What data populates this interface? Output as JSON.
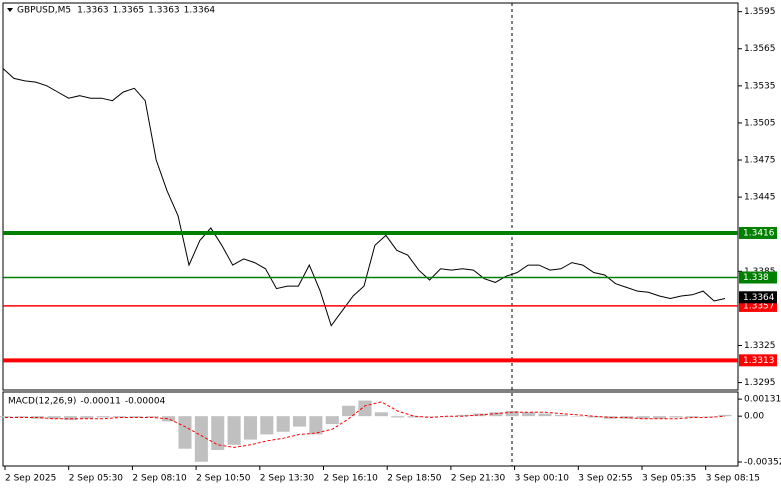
{
  "chart_data": [
    {
      "type": "line",
      "title": "GBPUSD,M5",
      "readout": [
        1.3363,
        1.3365,
        1.3363,
        1.3364
      ],
      "color": "#000000",
      "values": [
        1.3549,
        1.3541,
        1.3539,
        1.3538,
        1.3535,
        1.353,
        1.3525,
        1.3527,
        1.3525,
        1.3525,
        1.3523,
        1.353,
        1.3533,
        1.3523,
        1.3475,
        1.345,
        1.343,
        1.339,
        1.341,
        1.342,
        1.3406,
        1.339,
        1.3395,
        1.3392,
        1.3387,
        1.3371,
        1.3373,
        1.3373,
        1.339,
        1.3369,
        1.3341,
        1.3353,
        1.3365,
        1.3373,
        1.3406,
        1.3414,
        1.3402,
        1.3398,
        1.3386,
        1.3378,
        1.3387,
        1.3386,
        1.3387,
        1.3386,
        1.3379,
        1.3376,
        1.3381,
        1.3384,
        1.339,
        1.339,
        1.3386,
        1.3387,
        1.3392,
        1.339,
        1.3384,
        1.3382,
        1.3375,
        1.3372,
        1.3369,
        1.3368,
        1.3365,
        1.3363,
        1.3365,
        1.3366,
        1.3369,
        1.3361,
        1.3363
      ],
      "ylim": [
        1.3289,
        1.3602
      ],
      "yticks": [
        1.3595,
        1.3565,
        1.3535,
        1.3505,
        1.3475,
        1.3445,
        1.3385,
        1.3325,
        1.3295
      ],
      "xtick_labels": [
        "2 Sep 2025",
        "2 Sep 05:30",
        "2 Sep 08:10",
        "2 Sep 10:50",
        "2 Sep 13:30",
        "2 Sep 16:10",
        "2 Sep 18:50",
        "2 Sep 21:30",
        "3 Sep 00:10",
        "3 Sep 02:55",
        "3 Sep 05:35",
        "3 Sep 08:15"
      ],
      "levels": [
        {
          "value": 1.3416,
          "color": "#008000",
          "thick": true
        },
        {
          "value": 1.338,
          "color": "#008000",
          "thick": false
        },
        {
          "value": 1.3357,
          "color": "#ff0000",
          "thick": false
        },
        {
          "value": 1.3313,
          "color": "#ff0000",
          "thick": true
        }
      ],
      "last_price": 1.3364
    },
    {
      "type": "bar",
      "title": "MACD(12,26,9)",
      "readout": [
        -0.00011,
        -4e-05
      ],
      "series": [
        {
          "name": "MACD",
          "color": "#c0c0c0",
          "values": [
            -0.0001,
            -0.0001,
            -0.0002,
            -0.0002,
            -0.0003,
            -0.0002,
            -0.0001,
            -0.0001,
            -0.0001,
            -0.0001,
            -0.0004,
            -0.0025,
            -0.0035,
            -0.0026,
            -0.0022,
            -0.0018,
            -0.0014,
            -0.0012,
            -0.0008,
            -0.0014,
            -0.0006,
            0.0008,
            0.0012,
            0.0003,
            -0.0001,
            -0.0001,
            0.0,
            0.0,
            0.0001,
            0.0002,
            0.0003,
            0.0004,
            0.0003,
            0.0002,
            0.0001,
            0.0,
            -0.0001,
            -0.0002,
            -0.0002,
            -0.0002,
            -0.0002,
            -0.0001,
            -0.0001,
            0.0,
            0.0001
          ]
        },
        {
          "name": "Signal",
          "color": "#ff0000",
          "values": [
            -0.0001,
            -0.0001,
            -0.0001,
            -0.0002,
            -0.0002,
            -0.0002,
            -0.0002,
            -0.0001,
            -0.0001,
            -0.0001,
            -0.0002,
            -0.0008,
            -0.0015,
            -0.0022,
            -0.0024,
            -0.0022,
            -0.0019,
            -0.0017,
            -0.0014,
            -0.0013,
            -0.001,
            -0.0002,
            0.0008,
            0.0011,
            0.0004,
            0.0,
            -0.0001,
            0.0,
            0.0,
            0.0001,
            0.0002,
            0.0003,
            0.0003,
            0.0003,
            0.0002,
            0.0001,
            0.0,
            -0.0001,
            -0.0001,
            -0.0002,
            -0.0002,
            -0.0002,
            -0.0001,
            -0.0001,
            0.0
          ]
        }
      ],
      "ylim": [
        -0.00375,
        0.00178
      ],
      "yticks": [
        0.00131,
        {
          "value": 0,
          "label": "0.00"
        },
        -0.00352
      ]
    }
  ]
}
